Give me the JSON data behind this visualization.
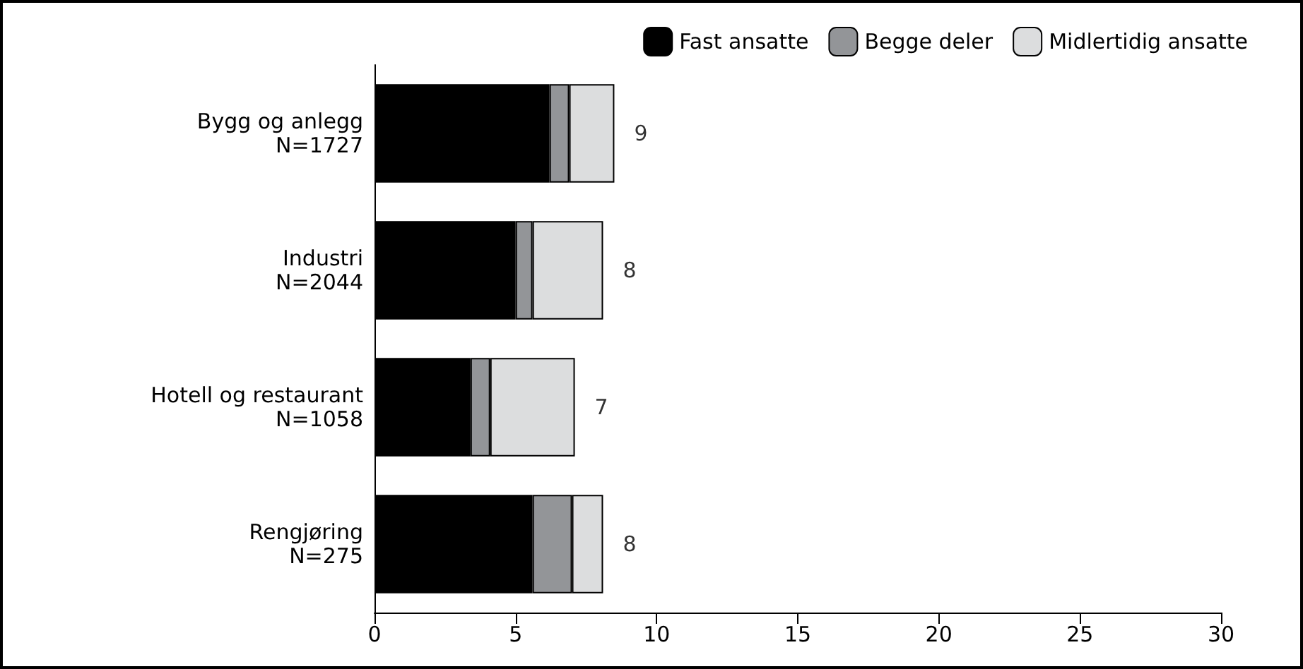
{
  "chart_data": {
    "type": "bar",
    "orientation": "horizontal",
    "stacked": true,
    "categories": [
      "Bygg og anlegg\nN=1727",
      "Industri\nN=2044",
      "Hotell og restaurant\nN=1058",
      "Rengjøring\nN=275"
    ],
    "series": [
      {
        "name": "Fast ansatte",
        "color": "#000000",
        "values": [
          6.2,
          5.0,
          3.4,
          5.6
        ]
      },
      {
        "name": "Begge deler",
        "color": "#939598",
        "values": [
          0.7,
          0.6,
          0.7,
          1.4
        ]
      },
      {
        "name": "Midlertidig ansatte",
        "color": "#dcddde",
        "values": [
          1.6,
          2.5,
          3.0,
          1.1
        ]
      }
    ],
    "totals": [
      "9",
      "8",
      "7",
      "8"
    ],
    "xlim": [
      0,
      30
    ],
    "xticks": [
      0,
      5,
      10,
      15,
      20,
      25,
      30
    ],
    "grid": false,
    "legend": "top right"
  }
}
